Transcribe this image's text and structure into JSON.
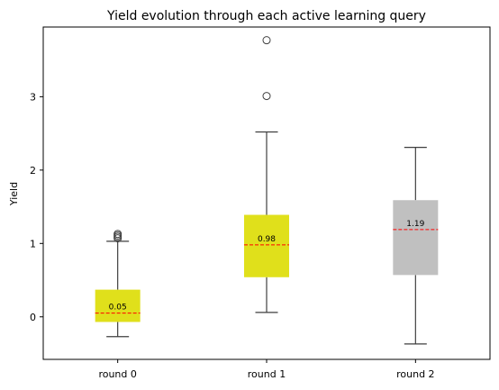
{
  "chart_data": {
    "type": "box",
    "title": "Yield evolution through each active learning query",
    "xlabel": "",
    "ylabel": "Yield",
    "ylim": [
      -0.58,
      3.95
    ],
    "yticks": [
      0,
      1,
      2,
      3
    ],
    "grid": false,
    "categories": [
      "round 0",
      "round 1",
      "round 2"
    ],
    "boxes": [
      {
        "category": "round 0",
        "q1": -0.07,
        "median": 0.05,
        "q3": 0.37,
        "whisker_low": -0.27,
        "whisker_high": 1.03,
        "outliers": [
          1.07,
          1.09,
          1.11,
          1.13
        ],
        "median_label": "0.05",
        "color": "#e0e01b"
      },
      {
        "category": "round 1",
        "q1": 0.54,
        "median": 0.98,
        "q3": 1.39,
        "whisker_low": 0.06,
        "whisker_high": 2.52,
        "outliers": [
          3.01,
          3.77
        ],
        "median_label": "0.98",
        "color": "#e0e01b"
      },
      {
        "category": "round 2",
        "q1": 0.57,
        "median": 1.19,
        "q3": 1.59,
        "whisker_low": -0.37,
        "whisker_high": 2.31,
        "outliers": [],
        "median_label": "1.19",
        "color": "#c0c0c0"
      }
    ],
    "colors": {
      "median_line": "#ff0000",
      "whisker": "#3f3f3f",
      "frame": "#000000"
    }
  }
}
